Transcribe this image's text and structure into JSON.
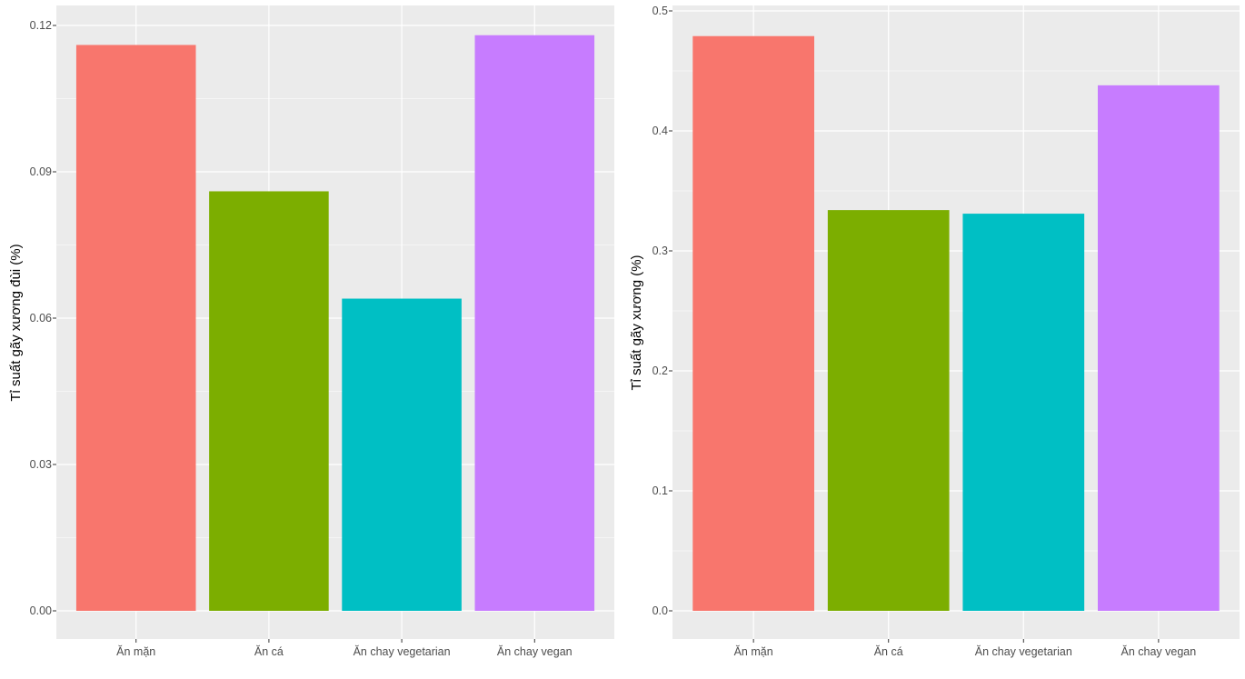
{
  "chart_data": [
    {
      "type": "bar",
      "title": "",
      "xlabel": "",
      "ylabel": "Tỉ suất gãy xương đùi (%)",
      "categories": [
        "Ăn mặn",
        "Ăn cá",
        "Ăn chay vegetarian",
        "Ăn chay vegan"
      ],
      "values": [
        0.116,
        0.086,
        0.064,
        0.118
      ],
      "ylim": [
        0,
        0.12
      ],
      "yticks": [
        "0.00",
        "0.03",
        "0.06",
        "0.09",
        "0.12"
      ],
      "colors": [
        "#F8766D",
        "#7CAE00",
        "#00BFC4",
        "#C77CFF"
      ],
      "grid": true,
      "legend": "none"
    },
    {
      "type": "bar",
      "title": "",
      "xlabel": "",
      "ylabel": "Tỉ suất gãy xương (%)",
      "categories": [
        "Ăn mặn",
        "Ăn cá",
        "Ăn chay vegetarian",
        "Ăn chay vegan"
      ],
      "values": [
        0.479,
        0.334,
        0.331,
        0.438
      ],
      "ylim": [
        0,
        0.5
      ],
      "yticks": [
        "0.0",
        "0.1",
        "0.2",
        "0.3",
        "0.4",
        "0.5"
      ],
      "colors": [
        "#F8766D",
        "#7CAE00",
        "#00BFC4",
        "#C77CFF"
      ],
      "grid": true,
      "legend": "none"
    }
  ]
}
